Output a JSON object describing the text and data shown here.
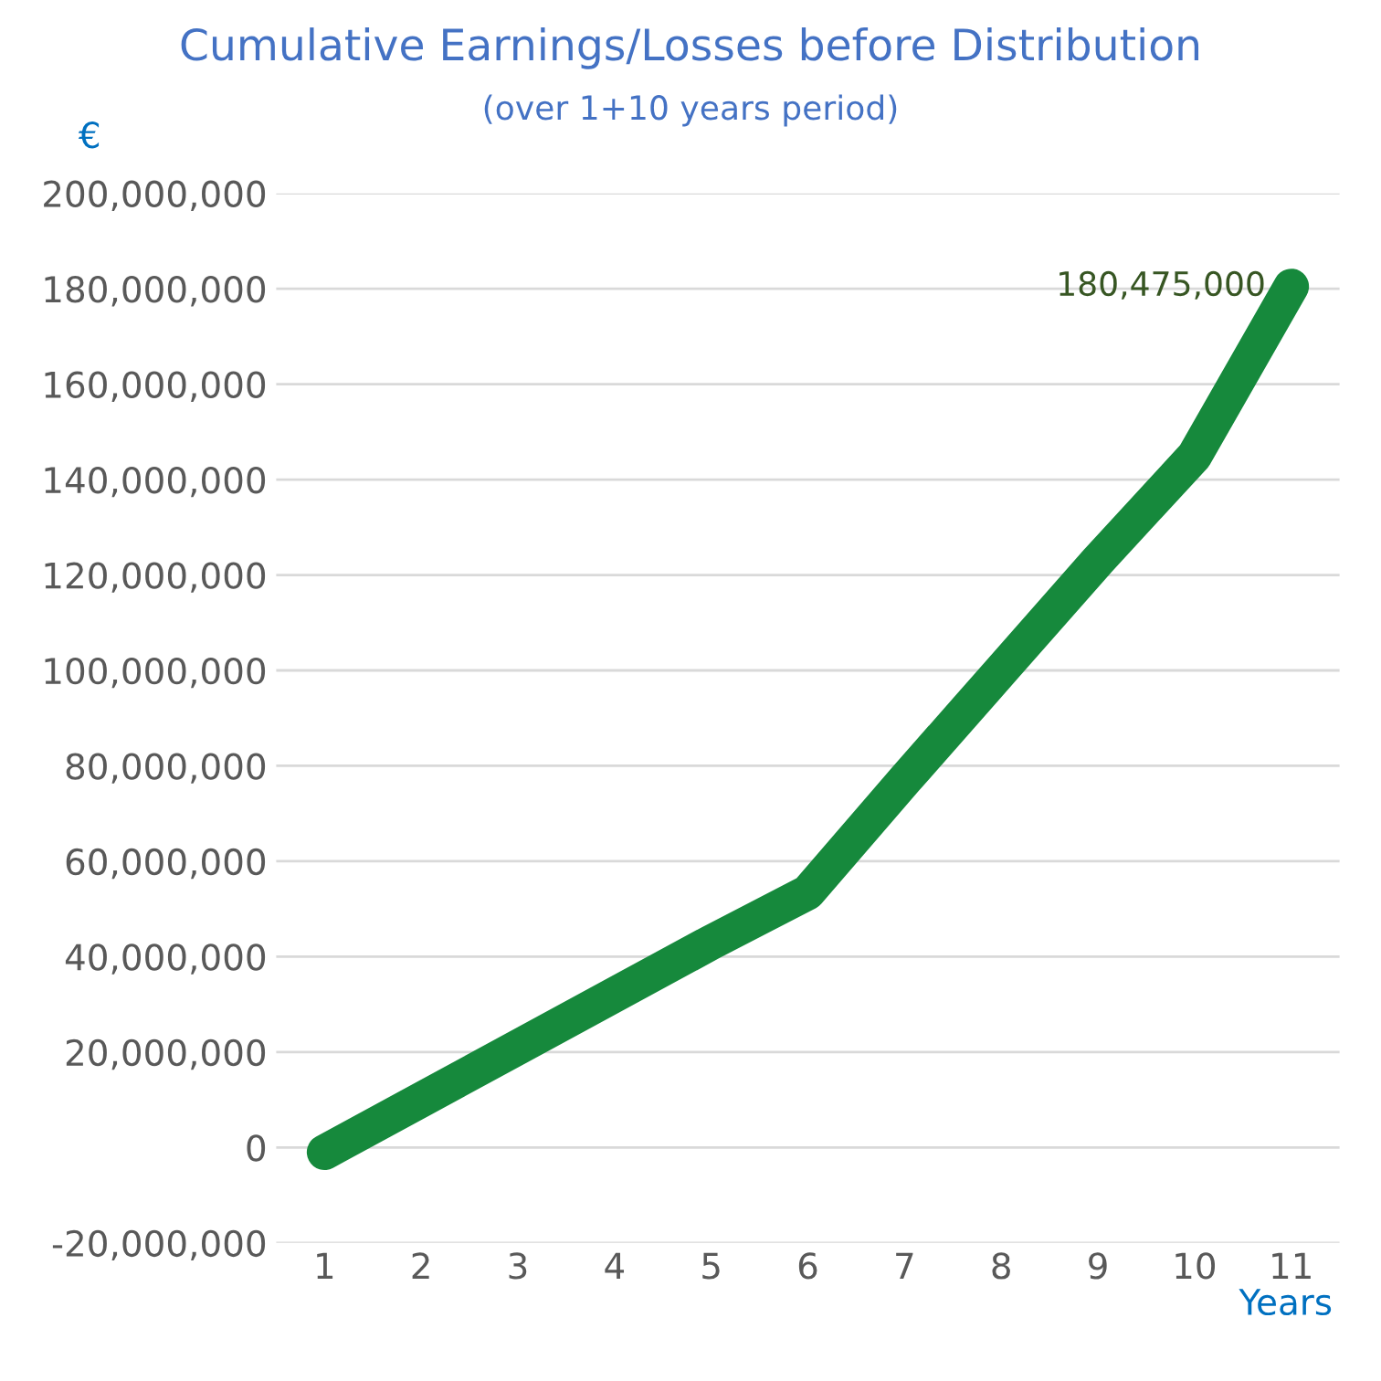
{
  "chart_data": {
    "type": "line",
    "title": "Cumulative Earnings/Losses before Distribution",
    "subtitle": "(over 1+10 years period)",
    "xlabel": "Years",
    "ylabel": "€",
    "categories": [
      "1",
      "2",
      "3",
      "4",
      "5",
      "6",
      "7",
      "8",
      "9",
      "10",
      "11"
    ],
    "series": [
      {
        "color": "#16893c",
        "values": [
          -1000000,
          10000000,
          21000000,
          32000000,
          43000000,
          53500000,
          77000000,
          100000000,
          123000000,
          145000000,
          180475000
        ],
        "value_labels": [
          null,
          null,
          null,
          null,
          null,
          null,
          null,
          null,
          null,
          null,
          "180,475,000"
        ]
      }
    ],
    "ylim": [
      -20000000,
      200000000
    ],
    "yticks": [
      {
        "value": -20000000,
        "label": "-20,000,000"
      },
      {
        "value": 0,
        "label": "0"
      },
      {
        "value": 20000000,
        "label": "20,000,000"
      },
      {
        "value": 40000000,
        "label": "40,000,000"
      },
      {
        "value": 60000000,
        "label": "60,000,000"
      },
      {
        "value": 80000000,
        "label": "80,000,000"
      },
      {
        "value": 100000000,
        "label": "100,000,000"
      },
      {
        "value": 120000000,
        "label": "120,000,000"
      },
      {
        "value": 140000000,
        "label": "140,000,000"
      },
      {
        "value": 160000000,
        "label": "160,000,000"
      },
      {
        "value": 180000000,
        "label": "180,000,000"
      },
      {
        "value": 200000000,
        "label": "200,000,000"
      }
    ],
    "grid": "y",
    "legend": false,
    "line_style": "solid"
  }
}
